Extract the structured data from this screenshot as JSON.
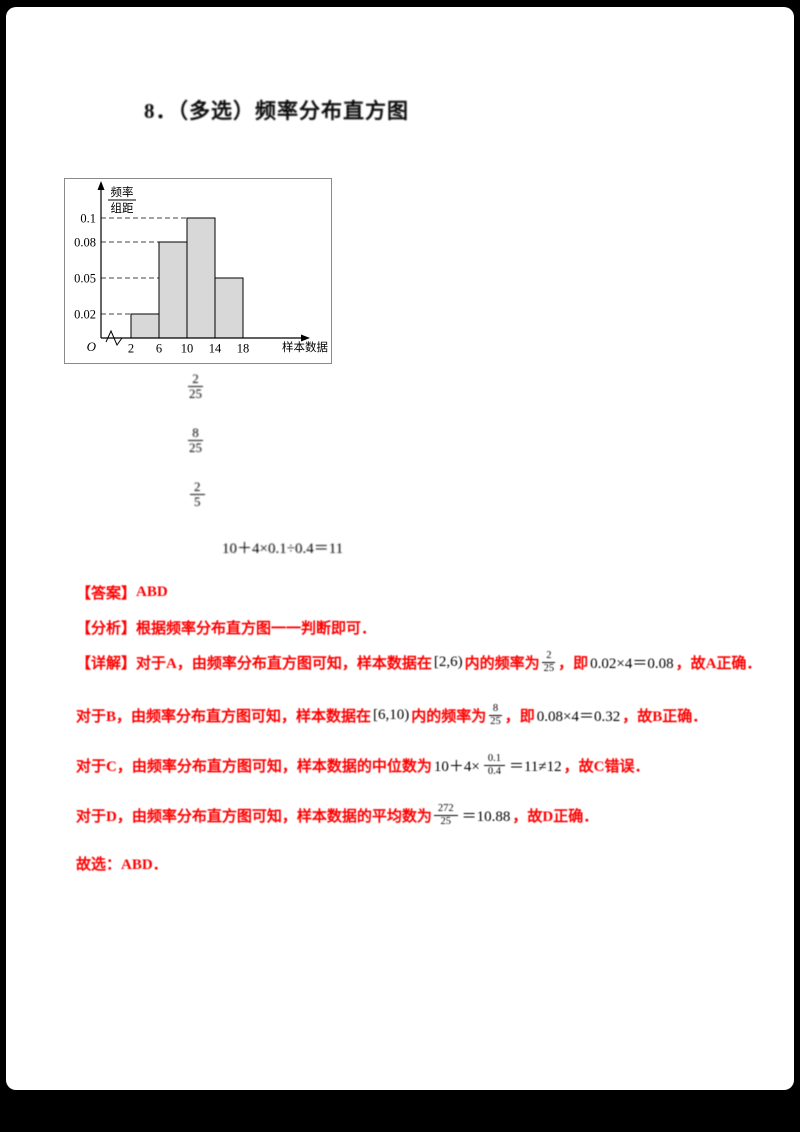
{
  "page": {
    "background": "#000000",
    "paper_color": "#ffffff"
  },
  "question": {
    "title": "8．（多选）频率分布直方图",
    "formulas": [
      {
        "kind": "fraction",
        "num": "2",
        "den": "25"
      },
      {
        "kind": "fraction",
        "num": "8",
        "den": "25"
      },
      {
        "kind": "fraction",
        "num": "2",
        "den": "5"
      },
      {
        "kind": "expression",
        "text": "10＋4×0.1÷0.4＝11"
      }
    ]
  },
  "chart_data": {
    "type": "bar",
    "title": "频率分布直方图",
    "ylabel": "频率/组距",
    "ylabel_numerator": "频率",
    "ylabel_denominator": "组距",
    "xlabel": "样本数据",
    "origin_label": "O",
    "x_ticks": [
      2,
      6,
      10,
      14,
      18
    ],
    "y_ticks": [
      "0.02",
      "0.05",
      "0.08",
      "0.1"
    ],
    "bins": [
      [
        2,
        6
      ],
      [
        6,
        10
      ],
      [
        10,
        14
      ],
      [
        14,
        18
      ]
    ],
    "values": [
      0.02,
      0.08,
      0.1,
      0.05
    ],
    "ylim": [
      0,
      0.11
    ],
    "grid": "dashed-horizontal",
    "legend": "none",
    "bar_fill": "#d8d8d8",
    "bar_stroke": "#000000"
  },
  "solution": {
    "answer_label": "【答案】",
    "answer": "ABD",
    "analysis_label": "【分析】",
    "analysis": "根据频率分布直方图一一判断即可．",
    "details": [
      {
        "segments": [
          {
            "type": "red",
            "text": "【详解】对于A，由频率分布直方图可知，样本数据在"
          },
          {
            "type": "expr",
            "text": "[2,6)"
          },
          {
            "type": "red",
            "text": "内的频率为"
          },
          {
            "type": "frac",
            "num": "2",
            "den": "25"
          },
          {
            "type": "red",
            "text": "，即"
          },
          {
            "type": "expr",
            "text": "0.02×4＝0.08"
          },
          {
            "type": "red",
            "text": "，故A正确．"
          }
        ]
      },
      {
        "segments": [
          {
            "type": "red",
            "text": "对于B，由频率分布直方图可知，样本数据在"
          },
          {
            "type": "expr",
            "text": "[6,10)"
          },
          {
            "type": "red",
            "text": "内的频率为"
          },
          {
            "type": "frac",
            "num": "8",
            "den": "25"
          },
          {
            "type": "red",
            "text": "，即"
          },
          {
            "type": "expr",
            "text": "0.08×4＝0.32"
          },
          {
            "type": "red",
            "text": "，故B正确．"
          }
        ]
      },
      {
        "segments": [
          {
            "type": "red",
            "text": "对于C，由频率分布直方图可知，样本数据的中位数为"
          },
          {
            "type": "expr",
            "text": "10＋4×"
          },
          {
            "type": "frac",
            "num": "0.1",
            "den": "0.4"
          },
          {
            "type": "expr",
            "text": "＝11≠12"
          },
          {
            "type": "red",
            "text": "，故C错误．"
          }
        ]
      },
      {
        "segments": [
          {
            "type": "red",
            "text": "对于D，由频率分布直方图可知，样本数据的平均数为"
          },
          {
            "type": "frac",
            "num": "272",
            "den": "25"
          },
          {
            "type": "expr",
            "text": "＝10.88"
          },
          {
            "type": "red",
            "text": "，故D正确．"
          }
        ]
      }
    ],
    "conclusion": "故选：ABD．"
  },
  "colors": {
    "red_text": "#fe0000",
    "black_text": "#000000",
    "bar_gray": "#d8d8d8"
  }
}
